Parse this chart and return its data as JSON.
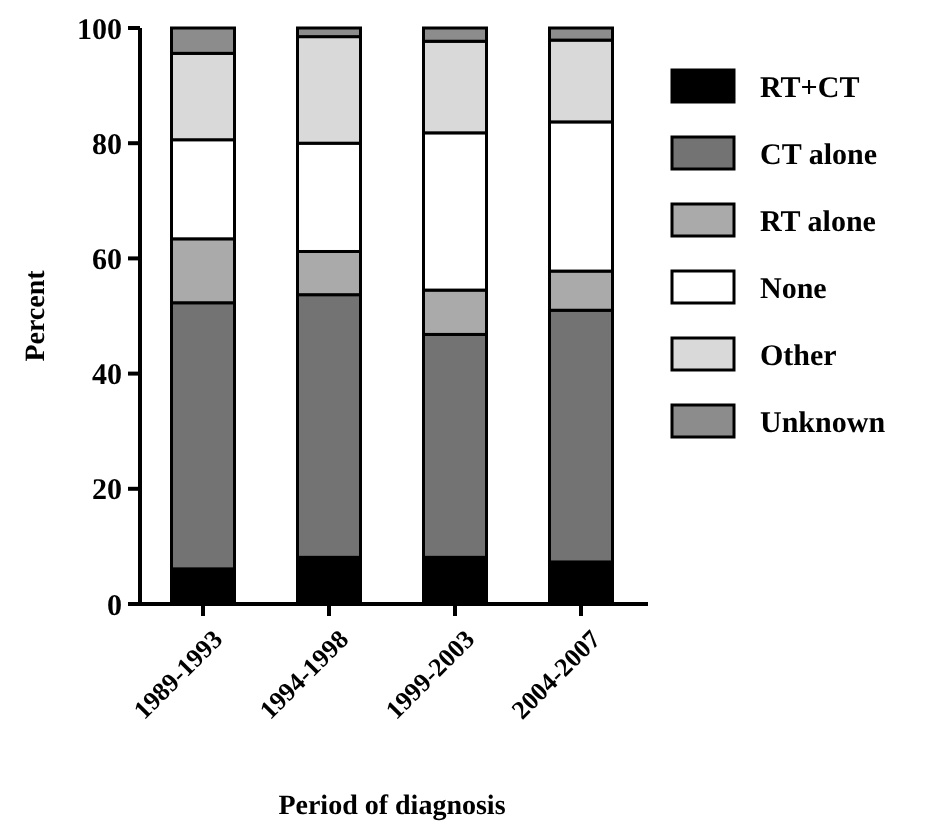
{
  "chart_data": {
    "type": "bar",
    "stacked": true,
    "xlabel": "Period of diagnosis",
    "ylabel": "Percent",
    "categories": [
      "1989-1993",
      "1994-1998",
      "1999-2003",
      "2004-2007"
    ],
    "ylim": [
      0,
      100
    ],
    "yticks": [
      0,
      20,
      40,
      60,
      80,
      100
    ],
    "legend": "right",
    "grid": false,
    "series": [
      {
        "name": "RT+CT",
        "color": "#000000",
        "values": [
          6.1,
          8.1,
          8.1,
          7.3
        ]
      },
      {
        "name": "CT alone",
        "color": "#737373",
        "values": [
          46.2,
          45.6,
          38.7,
          43.7
        ]
      },
      {
        "name": "RT alone",
        "color": "#aaaaaa",
        "values": [
          11.1,
          7.5,
          7.7,
          6.8
        ]
      },
      {
        "name": "None",
        "color": "#ffffff",
        "values": [
          17.2,
          18.8,
          27.3,
          25.9
        ]
      },
      {
        "name": "Other",
        "color": "#d9d9d9",
        "values": [
          15.0,
          18.5,
          15.9,
          14.2
        ]
      },
      {
        "name": "Unknown",
        "color": "#8c8c8c",
        "values": [
          4.4,
          1.5,
          2.3,
          2.1
        ]
      }
    ]
  }
}
